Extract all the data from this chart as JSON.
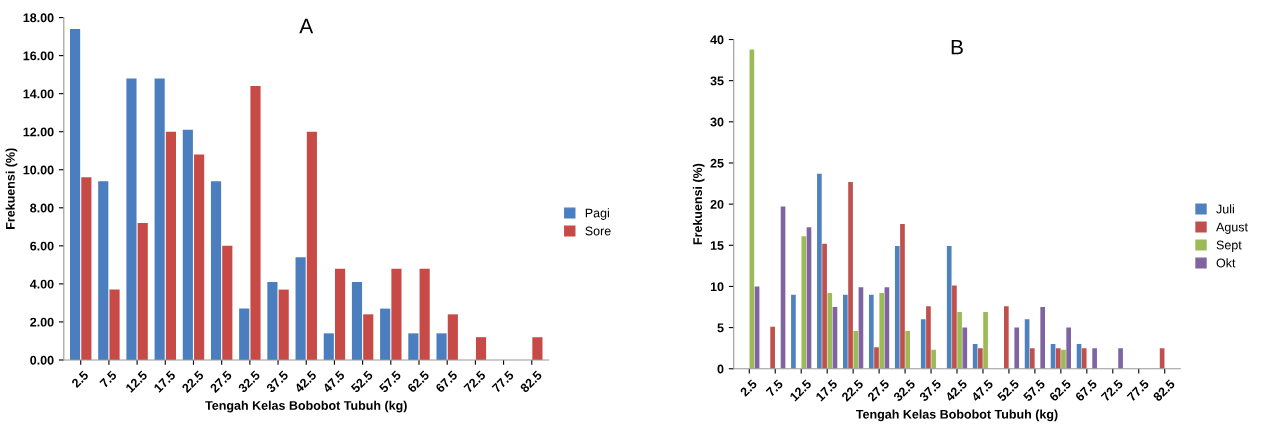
{
  "chart_data": [
    {
      "type": "bar",
      "title": "A",
      "xlabel": "Tengah Kelas Bobobot Tubuh (kg)",
      "ylabel": "Frekuensi (%)",
      "categories": [
        "2.5",
        "7.5",
        "12.5",
        "17.5",
        "22.5",
        "27.5",
        "32.5",
        "37.5",
        "42.5",
        "47.5",
        "52.5",
        "57.5",
        "62.5",
        "67.5",
        "72.5",
        "77.5",
        "82.5"
      ],
      "series": [
        {
          "name": "Pagi",
          "color": "#4a7ebf",
          "values": [
            17.4,
            9.4,
            14.8,
            14.8,
            12.1,
            9.4,
            2.7,
            4.1,
            5.4,
            1.4,
            4.1,
            2.7,
            1.4,
            1.4,
            0,
            0,
            0
          ]
        },
        {
          "name": "Sore",
          "color": "#c84a47",
          "values": [
            9.6,
            3.7,
            7.2,
            12.0,
            10.8,
            6.0,
            14.4,
            3.7,
            12.0,
            4.8,
            2.4,
            4.8,
            4.8,
            2.4,
            1.2,
            0,
            1.2
          ]
        }
      ],
      "ylim": [
        0,
        18
      ],
      "yticks": [
        {
          "value": 0,
          "label": "0.00"
        },
        {
          "value": 2,
          "label": "2.00"
        },
        {
          "value": 4,
          "label": "4.00"
        },
        {
          "value": 6,
          "label": "6.00"
        },
        {
          "value": 8,
          "label": "8.00"
        },
        {
          "value": 10,
          "label": "10.00"
        },
        {
          "value": 12,
          "label": "12.00"
        },
        {
          "value": 14,
          "label": "14.00"
        },
        {
          "value": 16,
          "label": "16.00"
        },
        {
          "value": 18,
          "label": "18.00"
        }
      ],
      "grid": false,
      "legend": "right"
    },
    {
      "type": "bar",
      "title": "B",
      "xlabel": "Tengah Kelas Bobobot Tubuh (kg)",
      "ylabel": "Frekuensi (%)",
      "categories": [
        "2.5",
        "7.5",
        "12.5",
        "17.5",
        "22.5",
        "27.5",
        "32.5",
        "37.5",
        "42.5",
        "47.5",
        "52.5",
        "57.5",
        "62.5",
        "67.5",
        "72.5",
        "77.5",
        "82.5"
      ],
      "series": [
        {
          "name": "Juli",
          "color": "#4f81bd",
          "values": [
            0,
            0,
            9.0,
            23.7,
            9.0,
            9.0,
            14.9,
            6.0,
            14.9,
            3.0,
            0,
            6.0,
            3.0,
            3.0,
            0,
            0,
            0
          ]
        },
        {
          "name": "Agust",
          "color": "#c0504d",
          "values": [
            0,
            5.1,
            0,
            15.2,
            22.7,
            2.6,
            17.6,
            7.6,
            10.1,
            2.5,
            7.6,
            2.5,
            2.5,
            2.5,
            0,
            0,
            2.5
          ]
        },
        {
          "name": "Sept",
          "color": "#9bbb59",
          "values": [
            38.8,
            0,
            16.1,
            9.2,
            4.6,
            9.2,
            4.6,
            2.3,
            6.9,
            6.9,
            0,
            0,
            2.3,
            0,
            0,
            0,
            0
          ]
        },
        {
          "name": "Okt",
          "color": "#8064a2",
          "values": [
            10.0,
            19.7,
            17.2,
            7.5,
            9.9,
            9.9,
            0,
            0,
            5.0,
            0,
            5.0,
            7.5,
            5.0,
            2.5,
            2.5,
            0,
            0
          ]
        }
      ],
      "ylim": [
        0,
        40
      ],
      "yticks": [
        0,
        5,
        10,
        15,
        20,
        25,
        30,
        35,
        40
      ],
      "grid": false,
      "legend": "right"
    }
  ]
}
